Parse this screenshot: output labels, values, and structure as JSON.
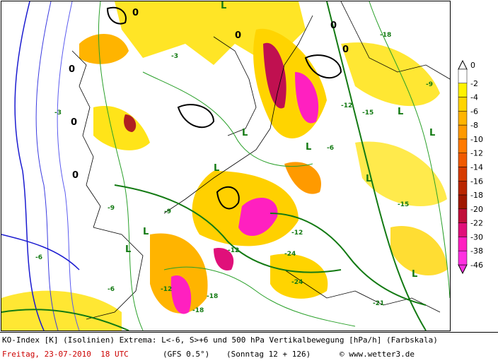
{
  "map": {
    "contour_labels": [
      "-3",
      "-6",
      "-9",
      "-12",
      "-15",
      "-18",
      "-21",
      "-24",
      "-6",
      "-3",
      "-12",
      "-9",
      "-15",
      "-18",
      "-12",
      "-6",
      "-9",
      "-12",
      "-24",
      "-18"
    ],
    "low_labels": [
      "L",
      "L",
      "L",
      "L",
      "L",
      "L",
      "L",
      "L",
      "L",
      "L"
    ],
    "high_labels": [
      "0",
      "0",
      "0",
      "0",
      "0",
      "0",
      "0"
    ]
  },
  "legend": {
    "ticks": [
      "0",
      "-2",
      "-4",
      "-6",
      "-8",
      "-10",
      "-12",
      "-14",
      "-16",
      "-18",
      "-20",
      "-22",
      "-30",
      "-38",
      "-46"
    ],
    "colors": [
      "#ffffff",
      "#fff200",
      "#ffd400",
      "#ffb400",
      "#ff9a00",
      "#ff7a00",
      "#f05a00",
      "#d63c00",
      "#b92600",
      "#a01800",
      "#c0103a",
      "#e0107a",
      "#ff20c0",
      "#ff30e0"
    ]
  },
  "footer": {
    "line1": "KO-Index [K] (Isolinien) Extrema: L<-6, S>+6 und 500 hPa Vertikalbewegung [hPa/h] (Farbskala)",
    "date": "Freitag, 23-07-2010  18 UTC",
    "model": "(GFS 0.5°)",
    "run": "(Sonntag 12 + 126)",
    "credit": "© www.wetter3.de"
  }
}
